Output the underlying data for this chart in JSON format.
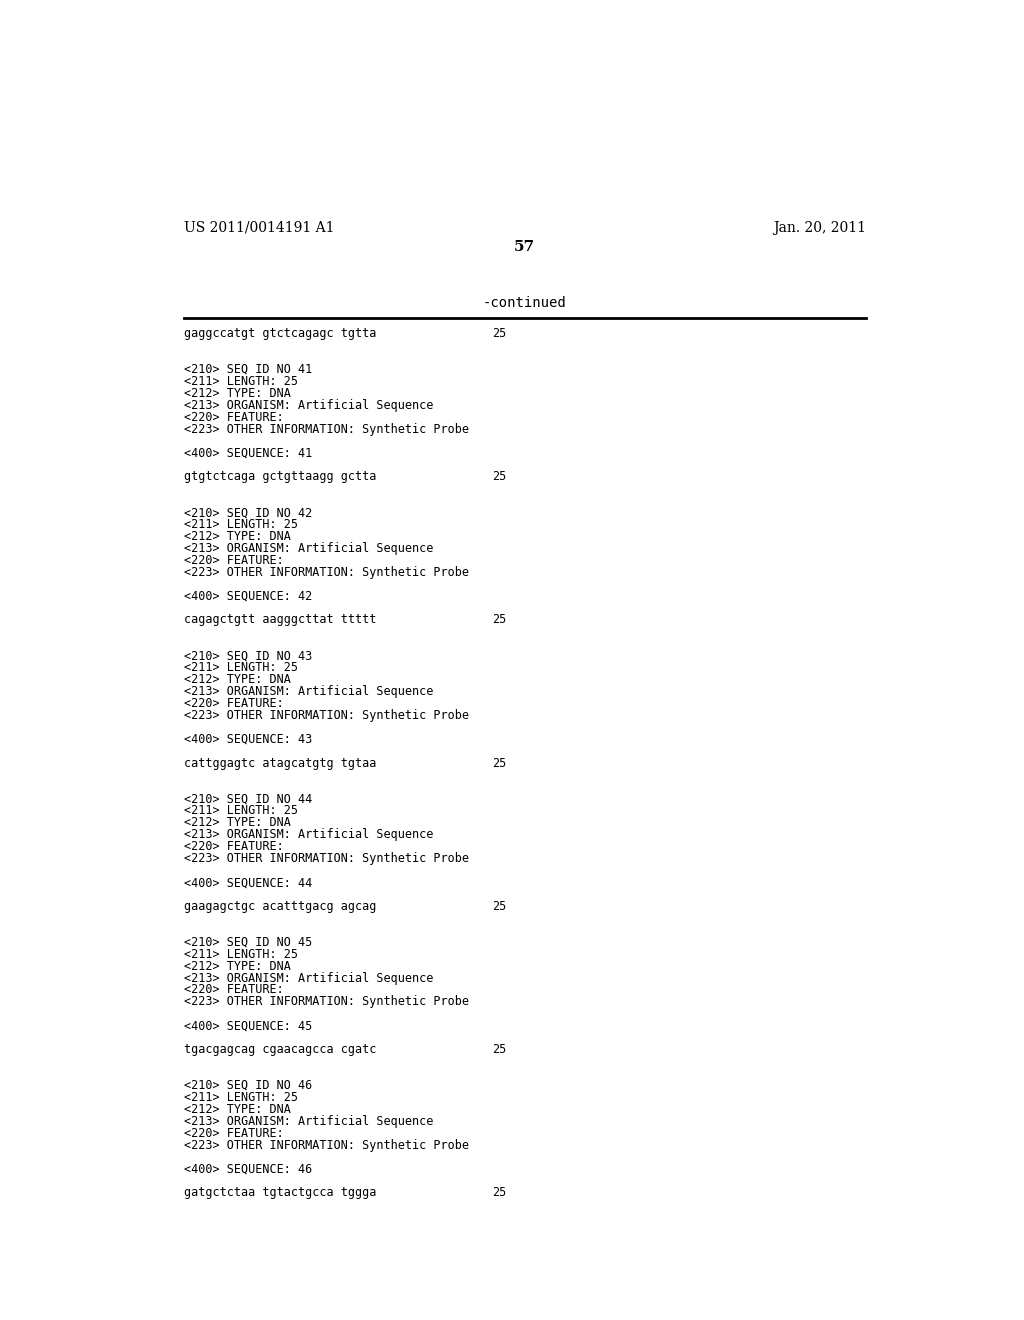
{
  "header_left": "US 2011/0014191 A1",
  "header_right": "Jan. 20, 2011",
  "page_number": "57",
  "continued_label": "-continued",
  "background_color": "#ffffff",
  "text_color": "#000000",
  "lines": [
    {
      "type": "sequence",
      "text": "gaggccatgt gtctcagagc tgtta",
      "num": "25"
    },
    {
      "type": "blank"
    },
    {
      "type": "blank"
    },
    {
      "type": "meta",
      "text": "<210> SEQ ID NO 41"
    },
    {
      "type": "meta",
      "text": "<211> LENGTH: 25"
    },
    {
      "type": "meta",
      "text": "<212> TYPE: DNA"
    },
    {
      "type": "meta",
      "text": "<213> ORGANISM: Artificial Sequence"
    },
    {
      "type": "meta",
      "text": "<220> FEATURE:"
    },
    {
      "type": "meta",
      "text": "<223> OTHER INFORMATION: Synthetic Probe"
    },
    {
      "type": "blank"
    },
    {
      "type": "meta",
      "text": "<400> SEQUENCE: 41"
    },
    {
      "type": "blank"
    },
    {
      "type": "sequence",
      "text": "gtgtctcaga gctgttaagg gctta",
      "num": "25"
    },
    {
      "type": "blank"
    },
    {
      "type": "blank"
    },
    {
      "type": "meta",
      "text": "<210> SEQ ID NO 42"
    },
    {
      "type": "meta",
      "text": "<211> LENGTH: 25"
    },
    {
      "type": "meta",
      "text": "<212> TYPE: DNA"
    },
    {
      "type": "meta",
      "text": "<213> ORGANISM: Artificial Sequence"
    },
    {
      "type": "meta",
      "text": "<220> FEATURE:"
    },
    {
      "type": "meta",
      "text": "<223> OTHER INFORMATION: Synthetic Probe"
    },
    {
      "type": "blank"
    },
    {
      "type": "meta",
      "text": "<400> SEQUENCE: 42"
    },
    {
      "type": "blank"
    },
    {
      "type": "sequence",
      "text": "cagagctgtt aagggcttat ttttt",
      "num": "25"
    },
    {
      "type": "blank"
    },
    {
      "type": "blank"
    },
    {
      "type": "meta",
      "text": "<210> SEQ ID NO 43"
    },
    {
      "type": "meta",
      "text": "<211> LENGTH: 25"
    },
    {
      "type": "meta",
      "text": "<212> TYPE: DNA"
    },
    {
      "type": "meta",
      "text": "<213> ORGANISM: Artificial Sequence"
    },
    {
      "type": "meta",
      "text": "<220> FEATURE:"
    },
    {
      "type": "meta",
      "text": "<223> OTHER INFORMATION: Synthetic Probe"
    },
    {
      "type": "blank"
    },
    {
      "type": "meta",
      "text": "<400> SEQUENCE: 43"
    },
    {
      "type": "blank"
    },
    {
      "type": "sequence",
      "text": "cattggagtc atagcatgtg tgtaa",
      "num": "25"
    },
    {
      "type": "blank"
    },
    {
      "type": "blank"
    },
    {
      "type": "meta",
      "text": "<210> SEQ ID NO 44"
    },
    {
      "type": "meta",
      "text": "<211> LENGTH: 25"
    },
    {
      "type": "meta",
      "text": "<212> TYPE: DNA"
    },
    {
      "type": "meta",
      "text": "<213> ORGANISM: Artificial Sequence"
    },
    {
      "type": "meta",
      "text": "<220> FEATURE:"
    },
    {
      "type": "meta",
      "text": "<223> OTHER INFORMATION: Synthetic Probe"
    },
    {
      "type": "blank"
    },
    {
      "type": "meta",
      "text": "<400> SEQUENCE: 44"
    },
    {
      "type": "blank"
    },
    {
      "type": "sequence",
      "text": "gaagagctgc acatttgacg agcag",
      "num": "25"
    },
    {
      "type": "blank"
    },
    {
      "type": "blank"
    },
    {
      "type": "meta",
      "text": "<210> SEQ ID NO 45"
    },
    {
      "type": "meta",
      "text": "<211> LENGTH: 25"
    },
    {
      "type": "meta",
      "text": "<212> TYPE: DNA"
    },
    {
      "type": "meta",
      "text": "<213> ORGANISM: Artificial Sequence"
    },
    {
      "type": "meta",
      "text": "<220> FEATURE:"
    },
    {
      "type": "meta",
      "text": "<223> OTHER INFORMATION: Synthetic Probe"
    },
    {
      "type": "blank"
    },
    {
      "type": "meta",
      "text": "<400> SEQUENCE: 45"
    },
    {
      "type": "blank"
    },
    {
      "type": "sequence",
      "text": "tgacgagcag cgaacagcca cgatc",
      "num": "25"
    },
    {
      "type": "blank"
    },
    {
      "type": "blank"
    },
    {
      "type": "meta",
      "text": "<210> SEQ ID NO 46"
    },
    {
      "type": "meta",
      "text": "<211> LENGTH: 25"
    },
    {
      "type": "meta",
      "text": "<212> TYPE: DNA"
    },
    {
      "type": "meta",
      "text": "<213> ORGANISM: Artificial Sequence"
    },
    {
      "type": "meta",
      "text": "<220> FEATURE:"
    },
    {
      "type": "meta",
      "text": "<223> OTHER INFORMATION: Synthetic Probe"
    },
    {
      "type": "blank"
    },
    {
      "type": "meta",
      "text": "<400> SEQUENCE: 46"
    },
    {
      "type": "blank"
    },
    {
      "type": "sequence",
      "text": "gatgctctaa tgtactgcca tggga",
      "num": "25"
    },
    {
      "type": "blank"
    },
    {
      "type": "blank"
    }
  ]
}
